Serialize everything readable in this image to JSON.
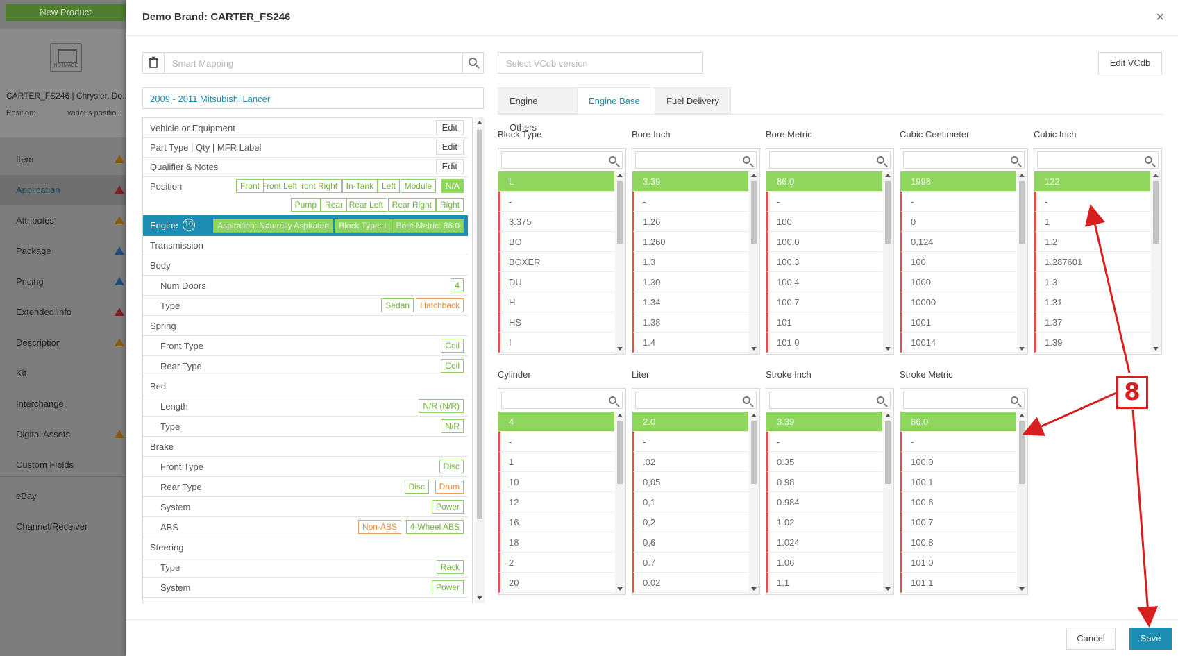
{
  "background": {
    "new_product": "New Product",
    "product_name": "CARTER_FS246 | Chrysler, Do...",
    "position_label": "Position:",
    "position_value": "various positio...",
    "no_image": "NO IMAGE",
    "nav": [
      {
        "label": "Item",
        "warn": "orange"
      },
      {
        "label": "Application",
        "warn": "red"
      },
      {
        "label": "Attributes",
        "warn": "orange"
      },
      {
        "label": "Package",
        "warn": "blue"
      },
      {
        "label": "Pricing",
        "warn": "blue"
      },
      {
        "label": "Extended Info",
        "warn": "red"
      },
      {
        "label": "Description",
        "warn": "orange"
      },
      {
        "label": "Kit",
        "warn": ""
      },
      {
        "label": "Interchange",
        "warn": ""
      },
      {
        "label": "Digital Assets",
        "warn": "orange"
      },
      {
        "label": "Custom Fields",
        "warn": ""
      },
      {
        "label": "eBay",
        "warn": ""
      },
      {
        "label": "Channel/Receiver",
        "warn": ""
      }
    ]
  },
  "modal": {
    "title": "Demo Brand: CARTER_FS246",
    "close": "×",
    "smart_mapping_placeholder": "Smart Mapping",
    "vcdb_placeholder": "Select VCdb version",
    "edit_vcdb": "Edit VCdb",
    "vehicle": "2009 - 2011 Mitsubishi Lancer",
    "edit_label": "Edit",
    "tree": {
      "vehicle_or_equipment": "Vehicle or Equipment",
      "part_type": "Part Type | Qty | MFR Label",
      "qualifier": "Qualifier & Notes",
      "position": "Position",
      "position_tags_row1": [
        "Front",
        "Front Left",
        "Front Right",
        "In-Tank",
        "Left",
        "Module",
        "N/A"
      ],
      "position_tags_row2": [
        "Pump",
        "Rear",
        "Rear Left",
        "Rear Right",
        "Right"
      ],
      "engine": "Engine",
      "engine_count": "10",
      "engine_tags": [
        "Aspiration: Naturally Aspirated",
        "Block Type: L",
        "Bore Metric: 86.0"
      ],
      "transmission": "Transmission",
      "body": "Body",
      "num_doors": "Num Doors",
      "num_doors_tag": "4",
      "type": "Type",
      "body_type_tags": [
        "Sedan",
        "Hatchback"
      ],
      "spring": "Spring",
      "front_type": "Front Type",
      "rear_type": "Rear Type",
      "coil": "Coil",
      "bed": "Bed",
      "length": "Length",
      "bed_length_tag": "N/R (N/R)",
      "bed_type_tag": "N/R",
      "brake": "Brake",
      "disc": "Disc",
      "drum": "Drum",
      "system": "System",
      "power": "Power",
      "abs": "ABS",
      "abs_tags": [
        "Non-ABS",
        "4-Wheel ABS"
      ],
      "steering": "Steering",
      "rack": "Rack"
    },
    "tabs": [
      "Engine Others",
      "Engine Base",
      "Fuel Delivery"
    ],
    "active_tab": "Engine Base",
    "columns_row1": [
      {
        "title": "Block Type",
        "items": [
          "L",
          "-",
          "3.375",
          "BO",
          "BOXER",
          "DU",
          "H",
          "HS",
          "I"
        ]
      },
      {
        "title": "Bore Inch",
        "items": [
          "3.39",
          "-",
          "1.26",
          "1.260",
          "1.3",
          "1.30",
          "1.34",
          "1.38",
          "1.4"
        ]
      },
      {
        "title": "Bore Metric",
        "items": [
          "86.0",
          "-",
          "100",
          "100.0",
          "100.3",
          "100.4",
          "100.7",
          "101",
          "101.0"
        ]
      },
      {
        "title": "Cubic Centimeter",
        "items": [
          "1998",
          "-",
          "0",
          "0,124",
          "100",
          "1000",
          "10000",
          "1001",
          "10014"
        ]
      },
      {
        "title": "Cubic Inch",
        "items": [
          "122",
          "-",
          "1",
          "1.2",
          "1.287601",
          "1.3",
          "1.31",
          "1.37",
          "1.39"
        ]
      }
    ],
    "columns_row2": [
      {
        "title": "Cylinder",
        "items": [
          "4",
          "-",
          "1",
          "10",
          "12",
          "16",
          "18",
          "2",
          "20"
        ]
      },
      {
        "title": "Liter",
        "items": [
          "2.0",
          "-",
          ".02",
          "0,05",
          "0,1",
          "0,2",
          "0,6",
          "0.7",
          "0.02"
        ]
      },
      {
        "title": "Stroke Inch",
        "items": [
          "3.39",
          "-",
          "0.35",
          "0.98",
          "0.984",
          "1.02",
          "1.024",
          "1.06",
          "1.1"
        ]
      },
      {
        "title": "Stroke Metric",
        "items": [
          "86.0",
          "-",
          "100.0",
          "100.1",
          "100.6",
          "100.7",
          "100.8",
          "101.0",
          "101.1"
        ]
      }
    ],
    "cancel": "Cancel",
    "save": "Save"
  },
  "annotation": {
    "number": "8",
    "color": "#d81f1f"
  },
  "colors": {
    "accent": "#1d8eb3",
    "selected": "#8fd65e",
    "warning_red": "#d9534f"
  }
}
